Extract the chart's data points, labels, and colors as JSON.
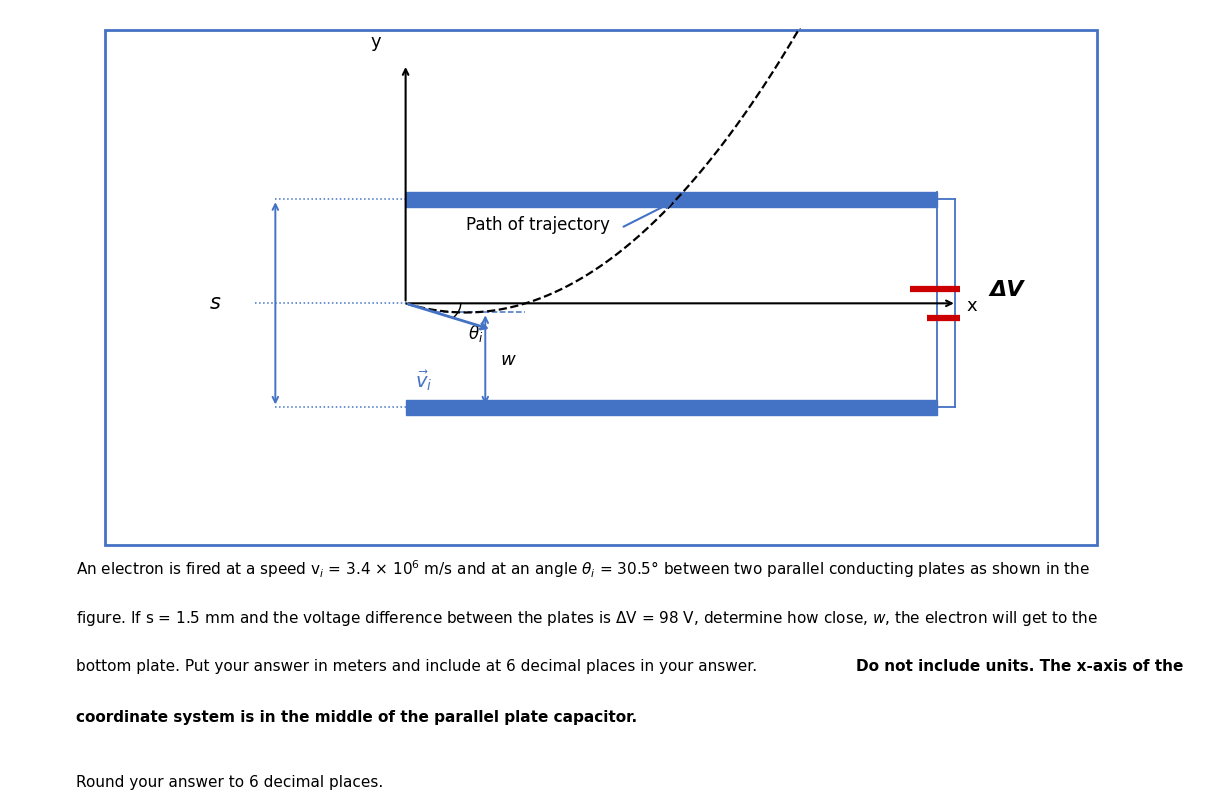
{
  "fig_width": 12.0,
  "fig_height": 7.76,
  "bg_color": "#ffffff",
  "box_color": "#4472c4",
  "plate_color": "#4472c4",
  "red_color": "#cc0000",
  "dark_color": "#222222",
  "text_path": "Path of trajectory",
  "text_DeltaV": "ΔV",
  "text_s": "s",
  "text_w": "w",
  "text_x": "x",
  "text_y": "y",
  "more_dots": "...",
  "line1": "An electron is fired at a speed v",
  "line1b": " = 3.4 × 10",
  "line1c": "6",
  "line1d": " m/s and at an angle θ",
  "line1e": "i",
  "line1f": " = 30.5° between two parallel conducting plates as shown in the",
  "line2": "figure. If s = 1.5 mm and the voltage difference between the plates is ΔV = 98 V, determine how close, w, the electron will get to the",
  "line3": "bottom plate. Put your answer in meters and include at 6 decimal places in your answer. ",
  "line3b": "Do not include units. The x-axis of the",
  "line4": "coordinate system is in the middle of the parallel plate capacitor.",
  "round_text": "Round your answer to 6 decimal places."
}
